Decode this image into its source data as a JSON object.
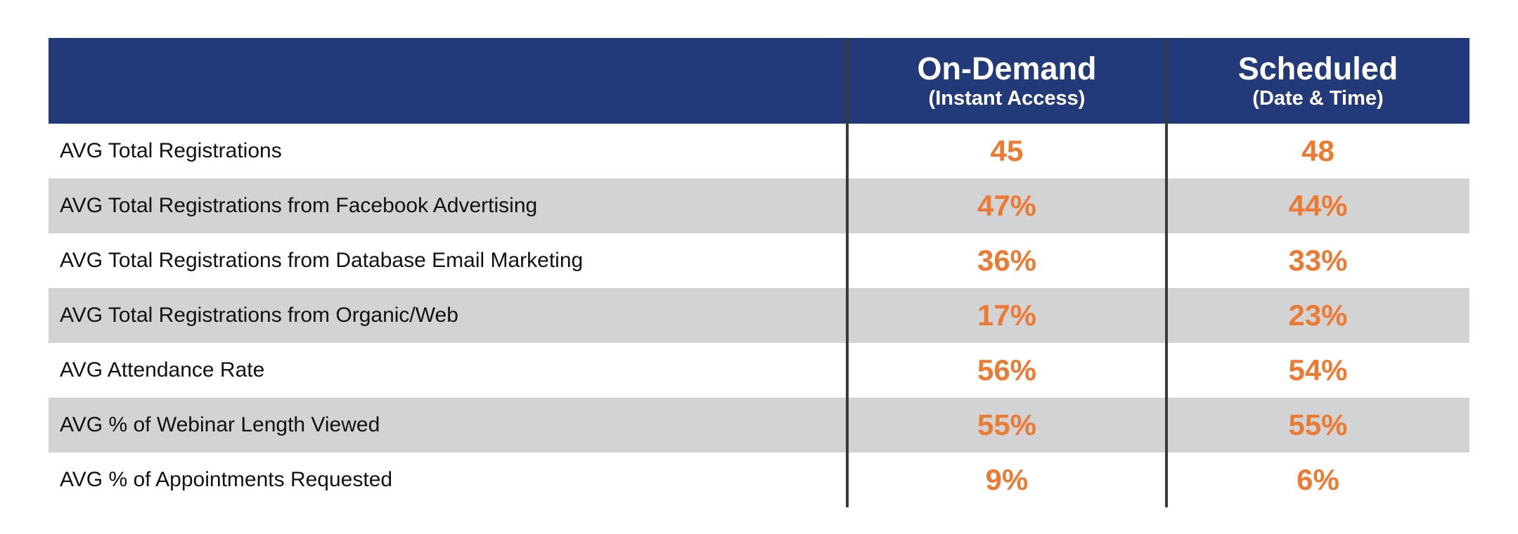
{
  "chart_data": {
    "type": "table",
    "columns": [
      {
        "title": "On-Demand",
        "subtitle": "(Instant Access)"
      },
      {
        "title": "Scheduled",
        "subtitle": "(Date & Time)"
      }
    ],
    "rows": [
      {
        "label": "AVG Total Registrations",
        "values": [
          "45",
          "48"
        ]
      },
      {
        "label": "AVG Total Registrations from Facebook Advertising",
        "values": [
          "47%",
          "44%"
        ]
      },
      {
        "label": "AVG Total Registrations from Database Email Marketing",
        "values": [
          "36%",
          "33%"
        ]
      },
      {
        "label": "AVG Total Registrations from Organic/Web",
        "values": [
          "17%",
          "23%"
        ]
      },
      {
        "label": "AVG Attendance Rate",
        "values": [
          "56%",
          "54%"
        ]
      },
      {
        "label": "AVG % of Webinar Length Viewed",
        "values": [
          "55%",
          "55%"
        ]
      },
      {
        "label": "AVG % of Appointments Requested",
        "values": [
          "9%",
          "6%"
        ]
      }
    ],
    "colors": {
      "header_bg": "#233a7a",
      "header_text": "#ffffff",
      "value_text": "#ee7a32",
      "shaded_row": "#d2d3d5",
      "divider": "#3a3a3a"
    }
  }
}
